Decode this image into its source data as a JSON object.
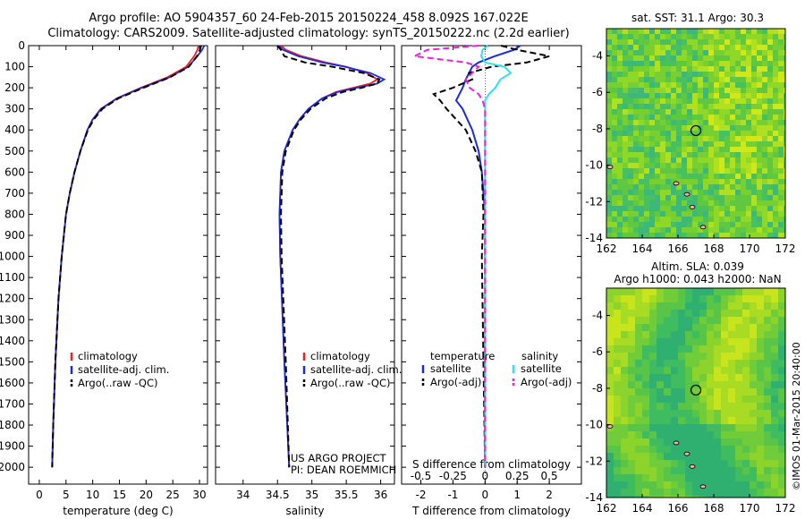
{
  "title_line1": "Argo profile: AO 5904357_60 24-Feb-2015 20150224_458 8.092S 167.022E",
  "title_line2": "Climatology: CARS2009. Satellite-adjusted climatology: synTS_20150222.nc (2.2d earlier)",
  "credit": "©IMOS 01-Mar-2015 20:40:00",
  "project_lines": [
    "US ARGO PROJECT",
    "PI: DEAN ROEMMICH"
  ],
  "colors": {
    "climatology": "#ee2020",
    "satellite": "#1a2be0",
    "argo": "#000000",
    "sal_satellite": "#30e0f0",
    "sal_argo": "#f020e0"
  },
  "chart_data": [
    {
      "type": "line",
      "xlabel": "temperature (deg C)",
      "ylabel": "",
      "xlim": [
        -2,
        31.5
      ],
      "ylim": [
        2080,
        0
      ],
      "xticks": [
        0,
        5,
        10,
        15,
        20,
        25,
        30
      ],
      "yticks": [
        0,
        100,
        200,
        300,
        400,
        500,
        600,
        700,
        800,
        900,
        1000,
        1100,
        1200,
        1300,
        1400,
        1500,
        1600,
        1700,
        1800,
        1900,
        2000
      ],
      "legend": [
        "climatology",
        "satellite-adj. clim.",
        "Argo(..raw -QC)"
      ],
      "depth": [
        0,
        20,
        50,
        100,
        150,
        200,
        250,
        300,
        350,
        400,
        500,
        600,
        700,
        800,
        1000,
        1200,
        1500,
        1800,
        2000
      ],
      "series": [
        {
          "name": "climatology",
          "values": [
            29.8,
            29.6,
            29.0,
            27.5,
            24.0,
            19.0,
            14.5,
            11.5,
            10.0,
            9.0,
            7.7,
            6.6,
            5.7,
            5.0,
            4.2,
            3.6,
            3.0,
            2.6,
            2.4
          ]
        },
        {
          "name": "satellite-adj. clim.",
          "values": [
            30.9,
            30.5,
            29.6,
            27.9,
            24.4,
            19.2,
            14.6,
            11.6,
            10.0,
            9.0,
            7.7,
            6.6,
            5.7,
            5.0,
            4.2,
            3.6,
            3.0,
            2.6,
            2.4
          ]
        },
        {
          "name": "Argo(..raw -QC)",
          "values": [
            30.3,
            30.1,
            29.5,
            28.0,
            24.5,
            19.5,
            14.8,
            11.8,
            10.2,
            9.1,
            7.7,
            6.6,
            5.7,
            5.0,
            4.2,
            3.6,
            3.0,
            2.6,
            2.4
          ]
        }
      ]
    },
    {
      "type": "line",
      "xlabel": "salinity",
      "ylabel": "",
      "xlim": [
        33.6,
        36.2
      ],
      "ylim": [
        2080,
        0
      ],
      "xticks": [
        34,
        34.5,
        35,
        35.5,
        36
      ],
      "legend": [
        "climatology",
        "satellite-adj. clim.",
        "Argo(..raw -QC)"
      ],
      "depth": [
        0,
        20,
        50,
        80,
        100,
        130,
        160,
        180,
        200,
        220,
        250,
        300,
        350,
        400,
        500,
        600,
        800,
        1000,
        1500,
        2000
      ],
      "series": [
        {
          "name": "climatology",
          "values": [
            34.55,
            34.62,
            34.85,
            35.2,
            35.5,
            35.8,
            35.95,
            35.85,
            35.6,
            35.35,
            35.15,
            34.95,
            34.82,
            34.72,
            34.6,
            34.55,
            34.53,
            34.54,
            34.6,
            34.67
          ]
        },
        {
          "name": "satellite-adj. clim.",
          "values": [
            34.52,
            34.58,
            34.8,
            35.15,
            35.48,
            35.85,
            36.05,
            35.95,
            35.65,
            35.38,
            35.15,
            34.95,
            34.82,
            34.72,
            34.6,
            34.55,
            34.53,
            34.54,
            34.6,
            34.67
          ]
        },
        {
          "name": "Argo(..raw -QC)",
          "values": [
            34.5,
            34.55,
            34.6,
            34.9,
            35.3,
            35.75,
            35.98,
            35.95,
            35.72,
            35.45,
            35.2,
            34.98,
            34.84,
            34.74,
            34.62,
            34.57,
            34.55,
            34.56,
            34.62,
            34.67
          ]
        }
      ]
    },
    {
      "type": "line",
      "xlabel": "T difference from climatology",
      "xlabel_top": "S difference from climatology",
      "ylim": [
        2080,
        0
      ],
      "xlim": [
        -2.6,
        3.0
      ],
      "xticks": [
        -2,
        -1,
        0,
        1,
        2
      ],
      "xlim_top": [
        -0.65,
        0.75
      ],
      "xticks_top": [
        -0.5,
        -0.25,
        0,
        0.25,
        0.5
      ],
      "xtick_labels_top": [
        "-0.5",
        "-0.25",
        "0",
        "0.25",
        "0.5"
      ],
      "legend_temperature": {
        "heading": "temperature",
        "items": [
          "satellite",
          "Argo(-adj)"
        ]
      },
      "legend_salinity": {
        "heading": "salinity",
        "items": [
          "satellite",
          "Argo(-adj)"
        ]
      },
      "depth": [
        0,
        20,
        50,
        80,
        100,
        130,
        160,
        200,
        230,
        260,
        300,
        400,
        500,
        600,
        800,
        1000,
        1500,
        2000
      ],
      "series": [
        {
          "name": "temperature satellite",
          "values": [
            1.1,
            0.9,
            0.3,
            -0.2,
            -0.4,
            -0.5,
            -0.6,
            -0.7,
            -0.8,
            -0.9,
            -0.7,
            -0.4,
            -0.2,
            -0.1,
            0.0,
            0.0,
            0.0,
            0.0
          ]
        },
        {
          "name": "temperature Argo(-adj)",
          "values": [
            0.5,
            1.0,
            2.0,
            1.3,
            0.2,
            -0.5,
            -0.4,
            -1.0,
            -1.6,
            -1.4,
            -1.2,
            -0.6,
            -0.3,
            -0.1,
            -0.05,
            -0.1,
            -0.05,
            0.0
          ]
        },
        {
          "name": "salinity satellite",
          "values": [
            0.02,
            -0.02,
            -0.03,
            0.0,
            0.15,
            0.2,
            0.12,
            0.08,
            0.03,
            0.0,
            0.0,
            0.0,
            0.0,
            0.0,
            0.0,
            0.0,
            0.0,
            0.0
          ]
        },
        {
          "name": "salinity Argo(-adj)",
          "values": [
            -0.05,
            -0.45,
            -0.55,
            -0.15,
            -0.05,
            -0.1,
            -0.15,
            -0.12,
            -0.05,
            -0.02,
            0.0,
            0.0,
            0.0,
            0.0,
            0.0,
            0.0,
            0.0,
            0.0
          ]
        }
      ]
    },
    {
      "type": "heatmap",
      "title": "sat. SST: 31.1  Argo: 30.3",
      "xlim": [
        162,
        172
      ],
      "ylim": [
        -14,
        -2.5
      ],
      "xticks": [
        162,
        164,
        166,
        168,
        170,
        172
      ],
      "yticks": [
        -4,
        -6,
        -8,
        -10,
        -12,
        -14
      ],
      "marker": {
        "lon": 167.0,
        "lat": -8.1
      }
    },
    {
      "type": "heatmap",
      "title_lines": [
        "Altim. SLA: 0.039",
        "Argo h1000: 0.043 h2000: NaN"
      ],
      "xlim": [
        162,
        172
      ],
      "ylim": [
        -14,
        -2.5
      ],
      "xticks": [
        162,
        164,
        166,
        168,
        170,
        172
      ],
      "yticks": [
        -4,
        -6,
        -8,
        -10,
        -12,
        -14
      ],
      "marker": {
        "lon": 167.0,
        "lat": -8.1
      }
    }
  ]
}
